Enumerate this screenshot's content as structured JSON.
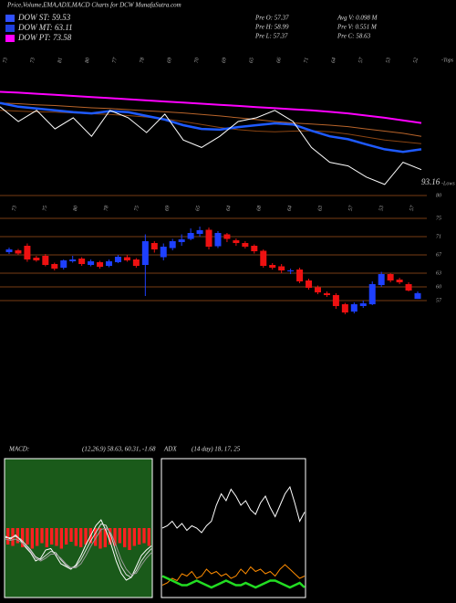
{
  "header": {
    "title": "Price,Volume,EMA,ADX,MACD Charts for DCW MunafaSutra.com",
    "legend": [
      {
        "label": "DOW ST: 59.53",
        "color": "#3050ff"
      },
      {
        "label": "DOW MT: 63.11",
        "color": "#2040e0"
      },
      {
        "label": "DOW PT: 73.58",
        "color": "#ff00ff"
      }
    ],
    "stats": [
      "Pre   O: 57.37",
      "Avg V: 0.098 M",
      "Pre   H: 58.99",
      "Pre   V: 0.551 M",
      "Pre   L: 57.37",
      "Pre   C: 58.63"
    ]
  },
  "chart_data": [
    {
      "type": "line",
      "ylim": [
        88,
        125
      ],
      "tops_label": "-Tops",
      "lows_label": "-Lows",
      "last_label": "93.16",
      "date_labels": [
        "73",
        "73",
        "81",
        "80",
        "77",
        "78",
        "69",
        "70",
        "69",
        "65",
        "66",
        "71",
        "64",
        "57",
        "53",
        "52"
      ],
      "series": [
        {
          "color": "#ff00ff",
          "values": [
            115,
            114.8,
            114.5,
            114.2,
            113.9,
            113.6,
            113.3,
            113,
            112.7,
            112.4,
            112.1,
            111.8,
            111.5,
            111.2,
            110.9,
            110.6,
            110.3,
            110,
            109.6,
            109.2,
            108.6,
            108,
            107.3,
            106.6
          ]
        },
        {
          "color": "#b8642a",
          "values": [
            112,
            111.8,
            111.5,
            111.3,
            111,
            110.7,
            110.5,
            110.2,
            109.9,
            109.6,
            109.3,
            108.9,
            108.5,
            108,
            107.5,
            107,
            106.6,
            106.3,
            106,
            105.6,
            105,
            104.4,
            103.8,
            103
          ]
        },
        {
          "color": "#8b4513",
          "values": [
            110,
            109.8,
            109.6,
            109.5,
            109.3,
            109.1,
            108.9,
            108.6,
            108.2,
            107.7,
            107,
            106.2,
            105.4,
            104.8,
            104.4,
            104.2,
            104.4,
            104.5,
            104.2,
            103.6,
            102.8,
            102,
            101.5,
            101
          ]
        },
        {
          "color": "#1e5aff",
          "values": [
            112,
            111,
            110.5,
            110,
            109.5,
            109.2,
            109.8,
            109.5,
            108.5,
            107.5,
            106,
            105,
            104.8,
            105.5,
            106,
            106.5,
            106.2,
            104.5,
            103,
            102.2,
            100.8,
            99.5,
            98.8,
            99.5
          ]
        },
        {
          "color": "#ffffff",
          "values": [
            111,
            107,
            110,
            105,
            108,
            103,
            110,
            108,
            104,
            109,
            102,
            100,
            103,
            107,
            108,
            110,
            107,
            100,
            96,
            95,
            92,
            90,
            96,
            94
          ]
        }
      ]
    },
    {
      "type": "candlestick",
      "ylim": [
        51,
        82
      ],
      "yticks": [
        80,
        75,
        71,
        67,
        63,
        60,
        57
      ],
      "up_color": "#1e40ff",
      "down_color": "#ee1111",
      "date_labels": [
        "73",
        "75",
        "80",
        "78",
        "75",
        "69",
        "65",
        "64",
        "68",
        "64",
        "63",
        "57",
        "53",
        "57"
      ],
      "open": [
        67.6,
        68,
        69,
        66.4,
        66.8,
        65,
        64.2,
        65.6,
        66.2,
        64.8,
        65.4,
        64.6,
        65.4,
        66.5,
        66,
        64.8,
        69.6,
        66.5,
        68.5,
        69.8,
        70.5,
        71.6,
        72.5,
        68.9,
        71.5,
        70.2,
        69.6,
        69,
        67.9,
        64.8,
        64.5,
        63.4,
        63.8,
        61.4,
        59.9,
        58.6,
        58.2,
        56.2,
        54.6,
        55.8,
        56.2,
        60.4,
        62.8,
        61.6,
        60.6,
        57.37
      ],
      "high": [
        68.6,
        68.3,
        69.5,
        66.8,
        67.2,
        65.3,
        66,
        66.8,
        66.5,
        66,
        65.7,
        66,
        67,
        67,
        66.3,
        71.5,
        70,
        69.5,
        70.5,
        71.5,
        72.8,
        73.2,
        73,
        72.2,
        71.8,
        70.6,
        70,
        69.3,
        68.2,
        65.2,
        65,
        64,
        64.2,
        61.8,
        60.3,
        59,
        58.6,
        56.5,
        56.6,
        57,
        61.2,
        63.3,
        63,
        62,
        61,
        58.99
      ],
      "low": [
        67.2,
        67,
        65.5,
        65.5,
        64.5,
        63.6,
        63.8,
        65.3,
        64.6,
        64.5,
        64,
        64.3,
        65.2,
        65.5,
        64.2,
        58,
        67.5,
        65.8,
        68,
        69,
        70.2,
        71,
        68.2,
        68.5,
        69.8,
        69,
        68.4,
        67.3,
        64.2,
        63.8,
        63,
        62.8,
        60.8,
        59.4,
        58.4,
        57.8,
        55.2,
        54,
        54.2,
        55.4,
        56,
        60,
        61,
        60.6,
        59,
        57.37
      ],
      "close": [
        68.2,
        67.3,
        66,
        65.8,
        64.8,
        64,
        65.8,
        66,
        65,
        65.6,
        64.4,
        65.6,
        66.6,
        65.8,
        64.6,
        70,
        68.2,
        68.8,
        70,
        70.4,
        71.8,
        72.4,
        68.8,
        71.8,
        70.5,
        69.6,
        68.8,
        67.8,
        64.6,
        64.2,
        63.6,
        63.6,
        61.2,
        59.8,
        58.8,
        58.2,
        55.8,
        54.4,
        56.2,
        56.4,
        60.6,
        62.8,
        61.4,
        61,
        59.2,
        58.63
      ]
    },
    {
      "type": "macd",
      "title": "MACD:",
      "subtitle": "(12,26,9) 58.63, 60.31, -1.68",
      "ylim": [
        -5,
        5
      ],
      "bar_color": "#ff2020",
      "background": "#1a5a1a",
      "values": [
        -1.2,
        -1.3,
        -1.1,
        -1.4,
        -1.2,
        -1.5,
        -1.3,
        -1.1,
        -1.4,
        -1.2,
        -1.3,
        -1.5,
        -1.2,
        -1,
        -1.3,
        -1.4,
        -1.2,
        -1.1,
        -1.3,
        -1.5,
        -1.4,
        -1.2,
        -1.3,
        -1.1,
        -1.4,
        -1.6,
        -1.3,
        -1.2,
        -1.1,
        -1.3
      ],
      "series": [
        {
          "color": "#ffffff",
          "values": [
            -0.6,
            -0.8,
            -0.5,
            -0.9,
            -1.4,
            -1.8,
            -2.4,
            -2.2,
            -1.6,
            -1.5,
            -2,
            -2.6,
            -2.8,
            -3,
            -2.7,
            -2,
            -1.2,
            -0.5,
            0.2,
            0.6,
            -0.2,
            -1.2,
            -2.4,
            -3.3,
            -3.8,
            -3.6,
            -2.8,
            -2,
            -1.6,
            -1.3
          ]
        },
        {
          "color": "#dddddd",
          "values": [
            -0.7,
            -0.7,
            -0.6,
            -0.8,
            -1.2,
            -1.6,
            -2.1,
            -2.3,
            -2,
            -1.7,
            -1.8,
            -2.3,
            -2.7,
            -2.9,
            -2.8,
            -2.3,
            -1.6,
            -0.9,
            -0.3,
            0.3,
            0.2,
            -0.6,
            -1.8,
            -2.8,
            -3.4,
            -3.6,
            -3.1,
            -2.4,
            -1.9,
            -1.5
          ]
        },
        {
          "color": "#999999",
          "values": [
            -0.8,
            -0.9,
            -0.8,
            -1,
            -1.3,
            -1.7,
            -2.2,
            -2.4,
            -2.2,
            -1.9,
            -1.9,
            -2.2,
            -2.6,
            -2.9,
            -2.9,
            -2.6,
            -2,
            -1.3,
            -0.7,
            -0.1,
            0,
            -0.4,
            -1.3,
            -2.3,
            -3,
            -3.4,
            -3.3,
            -2.7,
            -2.2,
            -1.8
          ]
        }
      ]
    },
    {
      "type": "adx",
      "title": "ADX",
      "subtitle": "(14 day) 18, 17, 25",
      "ylim": [
        0,
        60
      ],
      "series": [
        {
          "color": "#ffffff",
          "values": [
            30,
            31,
            33,
            30,
            32,
            29,
            31,
            30,
            28,
            31,
            33,
            40,
            45,
            42,
            47,
            44,
            40,
            42,
            38,
            36,
            41,
            44,
            39,
            35,
            40,
            45,
            48,
            41,
            33,
            37
          ]
        },
        {
          "color": "#ff8c00",
          "values": [
            5,
            6,
            8,
            7,
            10,
            9,
            11,
            8,
            9,
            12,
            10,
            11,
            9,
            10,
            8,
            9,
            12,
            10,
            13,
            11,
            12,
            10,
            11,
            9,
            12,
            14,
            12,
            10,
            8,
            9
          ]
        },
        {
          "color": "#22dd22",
          "values": [
            9,
            8,
            7,
            6,
            5,
            5,
            6,
            7,
            6,
            5,
            4,
            5,
            6,
            7,
            6,
            5,
            5,
            6,
            5,
            4,
            5,
            6,
            7,
            7,
            6,
            5,
            4,
            5,
            6,
            4
          ]
        }
      ]
    }
  ]
}
